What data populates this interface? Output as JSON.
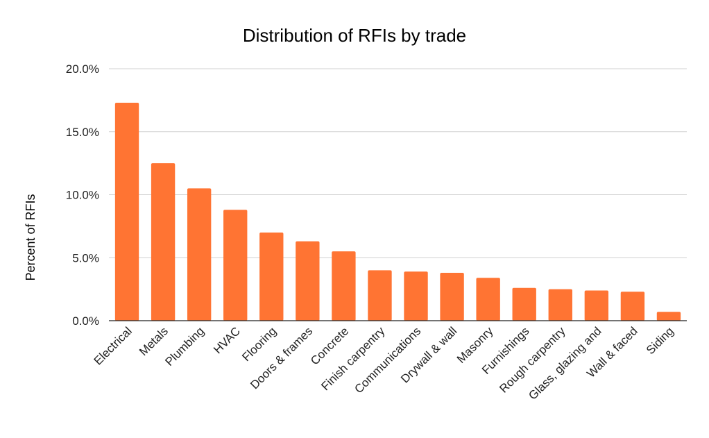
{
  "chart_data": {
    "type": "bar",
    "title": "Distribution of RFIs by trade",
    "xlabel": "",
    "ylabel": "Percent of RFIs",
    "categories": [
      "Electrical",
      "Metals",
      "Plumbing",
      "HVAC",
      "Flooring",
      "Doors & frames",
      "Concrete",
      "Finish carpentry",
      "Communications",
      "Drywall & wall",
      "Masonry",
      "Furnishings",
      "Rough carpentry",
      "Glass, glazing and",
      "Wall & faced",
      "Siding"
    ],
    "values": [
      17.3,
      12.5,
      10.5,
      8.8,
      7.0,
      6.3,
      5.5,
      4.0,
      3.9,
      3.8,
      3.4,
      2.6,
      2.5,
      2.4,
      2.3,
      0.7
    ],
    "ylim": [
      0,
      20
    ],
    "yticks": [
      "0.0%",
      "5.0%",
      "10.0%",
      "15.0%",
      "20.0%"
    ],
    "ytick_values": [
      0,
      5,
      10,
      15,
      20
    ],
    "grid": true,
    "legend": "none",
    "bar_color": "#ff7433"
  }
}
